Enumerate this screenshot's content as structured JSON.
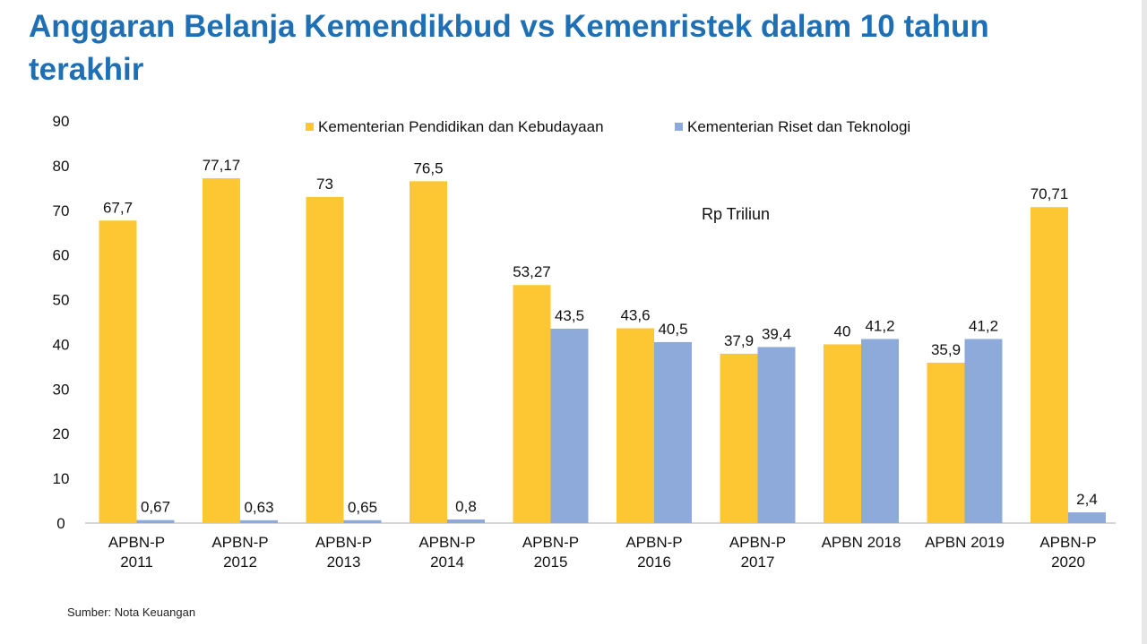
{
  "title": "Anggaran Belanja Kemendikbud vs Kemenristek dalam 10 tahun terakhir",
  "source": "Sumber: Nota Keuangan",
  "colors": {
    "title": "#1f6fb5",
    "series1": "#fcc733",
    "series2": "#8eaadb",
    "axis": "#c8c8c8"
  },
  "chart_data": {
    "type": "bar",
    "title": "Anggaran Belanja Kemendikbud vs Kemenristek dalam 10 tahun terakhir",
    "annotation": "Rp Triliun",
    "xlabel": "",
    "ylabel": "",
    "ylim": [
      0,
      90
    ],
    "yticks": [
      0,
      10,
      20,
      30,
      40,
      50,
      60,
      70,
      80,
      90
    ],
    "grid": false,
    "legend_position": "top-center",
    "categories": [
      [
        "APBN-P",
        "2011"
      ],
      [
        "APBN-P",
        "2012"
      ],
      [
        "APBN-P",
        "2013"
      ],
      [
        "APBN-P",
        "2014"
      ],
      [
        "APBN-P",
        "2015"
      ],
      [
        "APBN-P",
        "2016"
      ],
      [
        "APBN-P",
        "2017"
      ],
      [
        "APBN 2018"
      ],
      [
        "APBN 2019"
      ],
      [
        "APBN-P",
        "2020"
      ]
    ],
    "series": [
      {
        "name": "Kementerian Pendidikan dan Kebudayaan",
        "values": [
          67.7,
          77.17,
          73,
          76.5,
          53.27,
          43.6,
          37.9,
          40,
          35.9,
          70.71
        ],
        "labels": [
          "67,7",
          "77,17",
          "73",
          "76,5",
          "53,27",
          "43,6",
          "37,9",
          "40",
          "35,9",
          "70,71"
        ]
      },
      {
        "name": "Kementerian Riset dan Teknologi",
        "values": [
          0.67,
          0.63,
          0.65,
          0.8,
          43.5,
          40.5,
          39.4,
          41.2,
          41.2,
          2.4
        ],
        "labels": [
          "0,67",
          "0,63",
          "0,65",
          "0,8",
          "43,5",
          "40,5",
          "39,4",
          "41,2",
          "41,2",
          "2,4"
        ]
      }
    ]
  }
}
